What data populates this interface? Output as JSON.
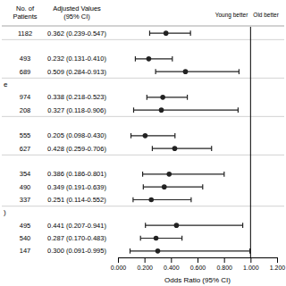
{
  "chart_data": {
    "type": "forest",
    "orientation": "horizontal",
    "xlabel": "Odds Ratio (95% CI)",
    "patients_header": "No. of\nPatients",
    "values_header": "Adjusted Values\n(95% CI)",
    "left_label": "Young better",
    "right_label": "Old better",
    "categories": [
      null,
      null,
      null,
      null,
      "e",
      null,
      null,
      null,
      null,
      null,
      null,
      null,
      null,
      null,
      ")",
      null,
      null,
      null
    ],
    "patients": [
      1182,
      null,
      493,
      689,
      null,
      974,
      208,
      null,
      555,
      627,
      null,
      354,
      490,
      337,
      null,
      495,
      540,
      147
    ],
    "series": [
      {
        "color": "#222222",
        "values": [
          0.362,
          null,
          0.232,
          0.509,
          null,
          0.338,
          0.327,
          null,
          0.205,
          0.428,
          null,
          0.386,
          0.349,
          0.251,
          null,
          0.441,
          0.287,
          0.3
        ],
        "ci_lo": [
          0.239,
          null,
          0.131,
          0.284,
          null,
          0.218,
          0.118,
          null,
          0.098,
          0.259,
          null,
          0.186,
          0.191,
          0.114,
          null,
          0.207,
          0.17,
          0.091
        ],
        "ci_hi": [
          0.547,
          null,
          0.41,
          0.913,
          null,
          0.523,
          0.906,
          null,
          0.43,
          0.706,
          null,
          0.801,
          0.639,
          0.552,
          null,
          0.941,
          0.483,
          0.995
        ],
        "value_labels": [
          "0.362 (0.239-0.547)",
          null,
          "0.232 (0.131-0.410)",
          "0.509 (0.284-0.913)",
          null,
          "0.338 (0.218-0.523)",
          "0.327 (0.118-0.906)",
          null,
          "0.205 (0.098-0.430)",
          "0.428 (0.259-0.706)",
          null,
          "0.386 (0.186-0.801)",
          "0.349 (0.191-0.639)",
          "0.251 (0.114-0.552)",
          null,
          "0.441 (0.207-0.941)",
          "0.287 (0.170-0.483)",
          "0.300 (0.091-0.995)"
        ]
      }
    ],
    "reference_line": 1.0,
    "xlim": [
      0.0,
      1.2
    ],
    "xticks": [
      {
        "value": 0.0,
        "label": "0.000"
      },
      {
        "value": 0.2,
        "label": "0.200"
      },
      {
        "value": 0.4,
        "label": "0.400"
      },
      {
        "value": 0.6,
        "label": "0.600"
      },
      {
        "value": 0.8,
        "label": "0.800"
      },
      {
        "value": 1.0,
        "label": "1.000"
      },
      {
        "value": 1.2,
        "label": "1.200"
      }
    ]
  }
}
